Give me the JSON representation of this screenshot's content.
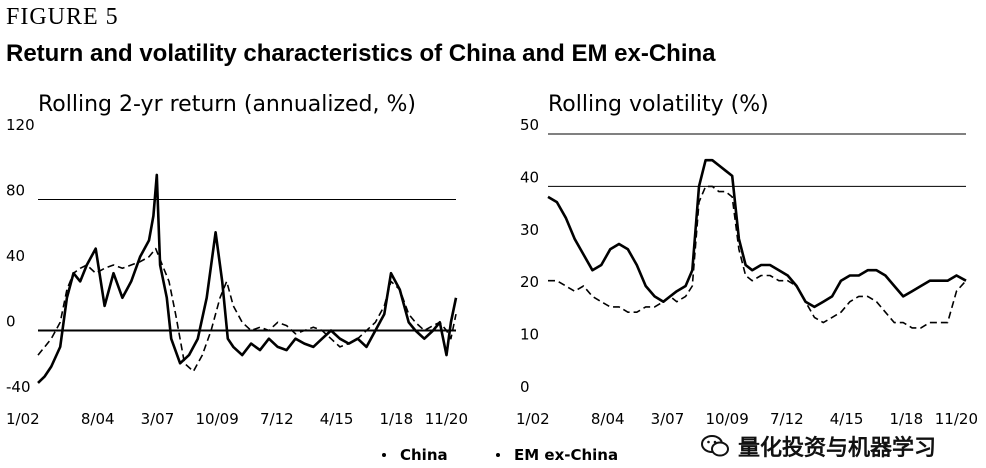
{
  "figure": {
    "label": "FIGURE 5",
    "title": "Return and volatility characteristics of China and EM ex-China"
  },
  "legend": [
    {
      "name": "China",
      "style": "solid"
    },
    {
      "name": "EM ex-China",
      "style": "dashed"
    }
  ],
  "watermark": {
    "text": "量化投资与机器学习",
    "icon": "wechat-icon"
  },
  "chart_data": [
    {
      "type": "line",
      "title": "Rolling 2-yr return (annualized, %)",
      "xlabel": "",
      "ylabel": "",
      "x_ticks": [
        "1/02",
        "8/04",
        "3/07",
        "10/09",
        "7/12",
        "4/15",
        "1/18",
        "11/20"
      ],
      "x_range": [
        2002.0,
        2020.83
      ],
      "ylim": [
        -40,
        120
      ],
      "y_ticks": [
        -40,
        0,
        40,
        80,
        120
      ],
      "gridlines": [
        80
      ],
      "zero_line": true,
      "series": [
        {
          "name": "China",
          "style": "solid",
          "x": [
            2002.0,
            2002.3,
            2002.6,
            2003.0,
            2003.3,
            2003.6,
            2003.9,
            2004.2,
            2004.6,
            2005.0,
            2005.4,
            2005.8,
            2006.2,
            2006.6,
            2007.0,
            2007.2,
            2007.35,
            2007.5,
            2007.8,
            2008.0,
            2008.4,
            2008.8,
            2009.2,
            2009.6,
            2010.0,
            2010.3,
            2010.55,
            2010.8,
            2011.2,
            2011.6,
            2012.0,
            2012.4,
            2012.8,
            2013.2,
            2013.6,
            2014.0,
            2014.4,
            2014.8,
            2015.2,
            2015.6,
            2016.0,
            2016.4,
            2016.8,
            2017.2,
            2017.6,
            2017.9,
            2018.3,
            2018.7,
            2019.0,
            2019.4,
            2019.8,
            2020.1,
            2020.4,
            2020.6,
            2020.83
          ],
          "y": [
            -32,
            -28,
            -22,
            -10,
            20,
            35,
            30,
            40,
            50,
            15,
            35,
            20,
            30,
            45,
            55,
            70,
            95,
            40,
            20,
            -5,
            -20,
            -15,
            -5,
            20,
            60,
            30,
            -5,
            -10,
            -15,
            -8,
            -12,
            -5,
            -10,
            -12,
            -5,
            -8,
            -10,
            -5,
            0,
            -5,
            -8,
            -5,
            -10,
            0,
            10,
            35,
            25,
            5,
            0,
            -5,
            0,
            5,
            -15,
            5,
            20
          ]
        },
        {
          "name": "EM ex-China",
          "style": "dashed",
          "x": [
            2002.0,
            2002.3,
            2002.6,
            2003.0,
            2003.3,
            2003.6,
            2003.9,
            2004.2,
            2004.6,
            2005.0,
            2005.4,
            2005.8,
            2006.2,
            2006.6,
            2007.0,
            2007.3,
            2007.6,
            2007.9,
            2008.2,
            2008.6,
            2009.0,
            2009.4,
            2009.8,
            2010.2,
            2010.5,
            2010.8,
            2011.2,
            2011.6,
            2012.0,
            2012.4,
            2012.8,
            2013.2,
            2013.6,
            2014.0,
            2014.4,
            2014.8,
            2015.2,
            2015.6,
            2016.0,
            2016.4,
            2016.8,
            2017.2,
            2017.6,
            2017.9,
            2018.3,
            2018.7,
            2019.0,
            2019.4,
            2019.8,
            2020.1,
            2020.4,
            2020.6,
            2020.83
          ],
          "y": [
            -15,
            -10,
            -5,
            5,
            25,
            35,
            38,
            40,
            35,
            38,
            40,
            38,
            40,
            42,
            45,
            50,
            40,
            30,
            10,
            -20,
            -25,
            -15,
            0,
            20,
            30,
            15,
            5,
            0,
            2,
            0,
            5,
            3,
            -2,
            0,
            2,
            0,
            -5,
            -10,
            -8,
            -5,
            0,
            5,
            15,
            30,
            25,
            10,
            5,
            0,
            3,
            5,
            0,
            -5,
            10
          ]
        }
      ]
    },
    {
      "type": "line",
      "title": "Rolling volatility (%)",
      "xlabel": "",
      "ylabel": "",
      "x_ticks": [
        "1/02",
        "8/04",
        "3/07",
        "10/09",
        "7/12",
        "4/15",
        "1/18",
        "11/20"
      ],
      "x_range": [
        2002.0,
        2020.83
      ],
      "ylim": [
        0,
        50
      ],
      "y_ticks": [
        0,
        10,
        20,
        30,
        40,
        50
      ],
      "gridlines": [
        40,
        50
      ],
      "zero_line": false,
      "series": [
        {
          "name": "China",
          "style": "solid",
          "x": [
            2002.0,
            2002.4,
            2002.8,
            2003.2,
            2003.6,
            2004.0,
            2004.4,
            2004.8,
            2005.2,
            2005.6,
            2006.0,
            2006.4,
            2006.8,
            2007.2,
            2007.5,
            2007.8,
            2008.2,
            2008.5,
            2008.8,
            2009.1,
            2009.4,
            2009.7,
            2010.0,
            2010.3,
            2010.6,
            2010.9,
            2011.2,
            2011.6,
            2012.0,
            2012.4,
            2012.8,
            2013.2,
            2013.6,
            2014.0,
            2014.4,
            2014.8,
            2015.2,
            2015.6,
            2016.0,
            2016.4,
            2016.8,
            2017.2,
            2017.6,
            2018.0,
            2018.4,
            2018.8,
            2019.2,
            2019.6,
            2020.0,
            2020.4,
            2020.83
          ],
          "y": [
            38,
            37,
            34,
            30,
            27,
            24,
            25,
            28,
            29,
            28,
            25,
            21,
            19,
            18,
            19,
            20,
            21,
            24,
            40,
            45,
            45,
            44,
            43,
            42,
            30,
            25,
            24,
            25,
            25,
            24,
            23,
            21,
            18,
            17,
            18,
            19,
            22,
            23,
            23,
            24,
            24,
            23,
            21,
            19,
            20,
            21,
            22,
            22,
            22,
            23,
            22
          ]
        },
        {
          "name": "EM ex-China",
          "style": "dashed",
          "x": [
            2002.0,
            2002.4,
            2002.8,
            2003.2,
            2003.6,
            2004.0,
            2004.4,
            2004.8,
            2005.2,
            2005.6,
            2006.0,
            2006.4,
            2006.8,
            2007.2,
            2007.5,
            2007.8,
            2008.2,
            2008.5,
            2008.8,
            2009.1,
            2009.4,
            2009.7,
            2010.0,
            2010.3,
            2010.6,
            2010.9,
            2011.2,
            2011.6,
            2012.0,
            2012.4,
            2012.8,
            2013.2,
            2013.6,
            2014.0,
            2014.4,
            2014.8,
            2015.2,
            2015.6,
            2016.0,
            2016.4,
            2016.8,
            2017.2,
            2017.6,
            2018.0,
            2018.4,
            2018.8,
            2019.2,
            2019.6,
            2020.0,
            2020.4,
            2020.83
          ],
          "y": [
            22,
            22,
            21,
            20,
            21,
            19,
            18,
            17,
            17,
            16,
            16,
            17,
            17,
            18,
            19,
            18,
            19,
            21,
            37,
            40,
            40,
            39,
            39,
            38,
            28,
            23,
            22,
            23,
            23,
            22,
            22,
            21,
            18,
            15,
            14,
            15,
            16,
            18,
            19,
            19,
            18,
            16,
            14,
            14,
            13,
            13,
            14,
            14,
            14,
            20,
            22
          ]
        }
      ]
    }
  ]
}
